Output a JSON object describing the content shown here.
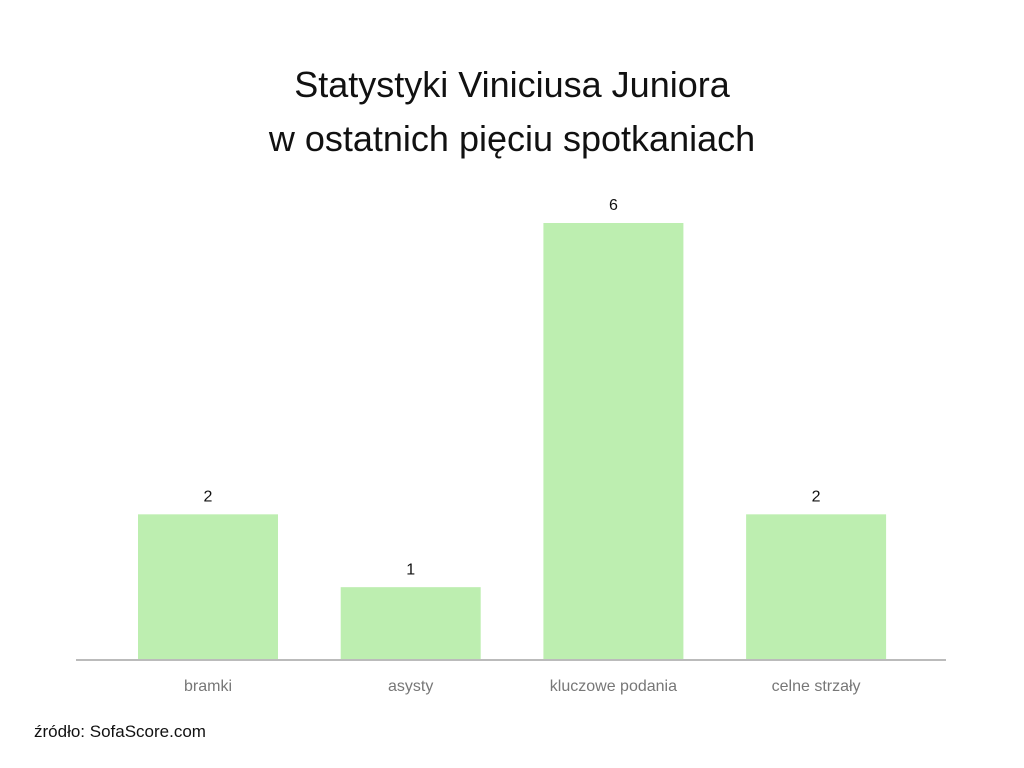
{
  "chart_data": {
    "type": "bar",
    "title": "Statystyki Viniciusa Juniora\nw ostatnich pięciu spotkaniach",
    "categories": [
      "bramki",
      "asysty",
      "kluczowe podania",
      "celne strzały"
    ],
    "values": [
      2,
      1,
      6,
      2
    ],
    "color": "#bdeeb0",
    "source": "źródło: SofaScore.com"
  }
}
